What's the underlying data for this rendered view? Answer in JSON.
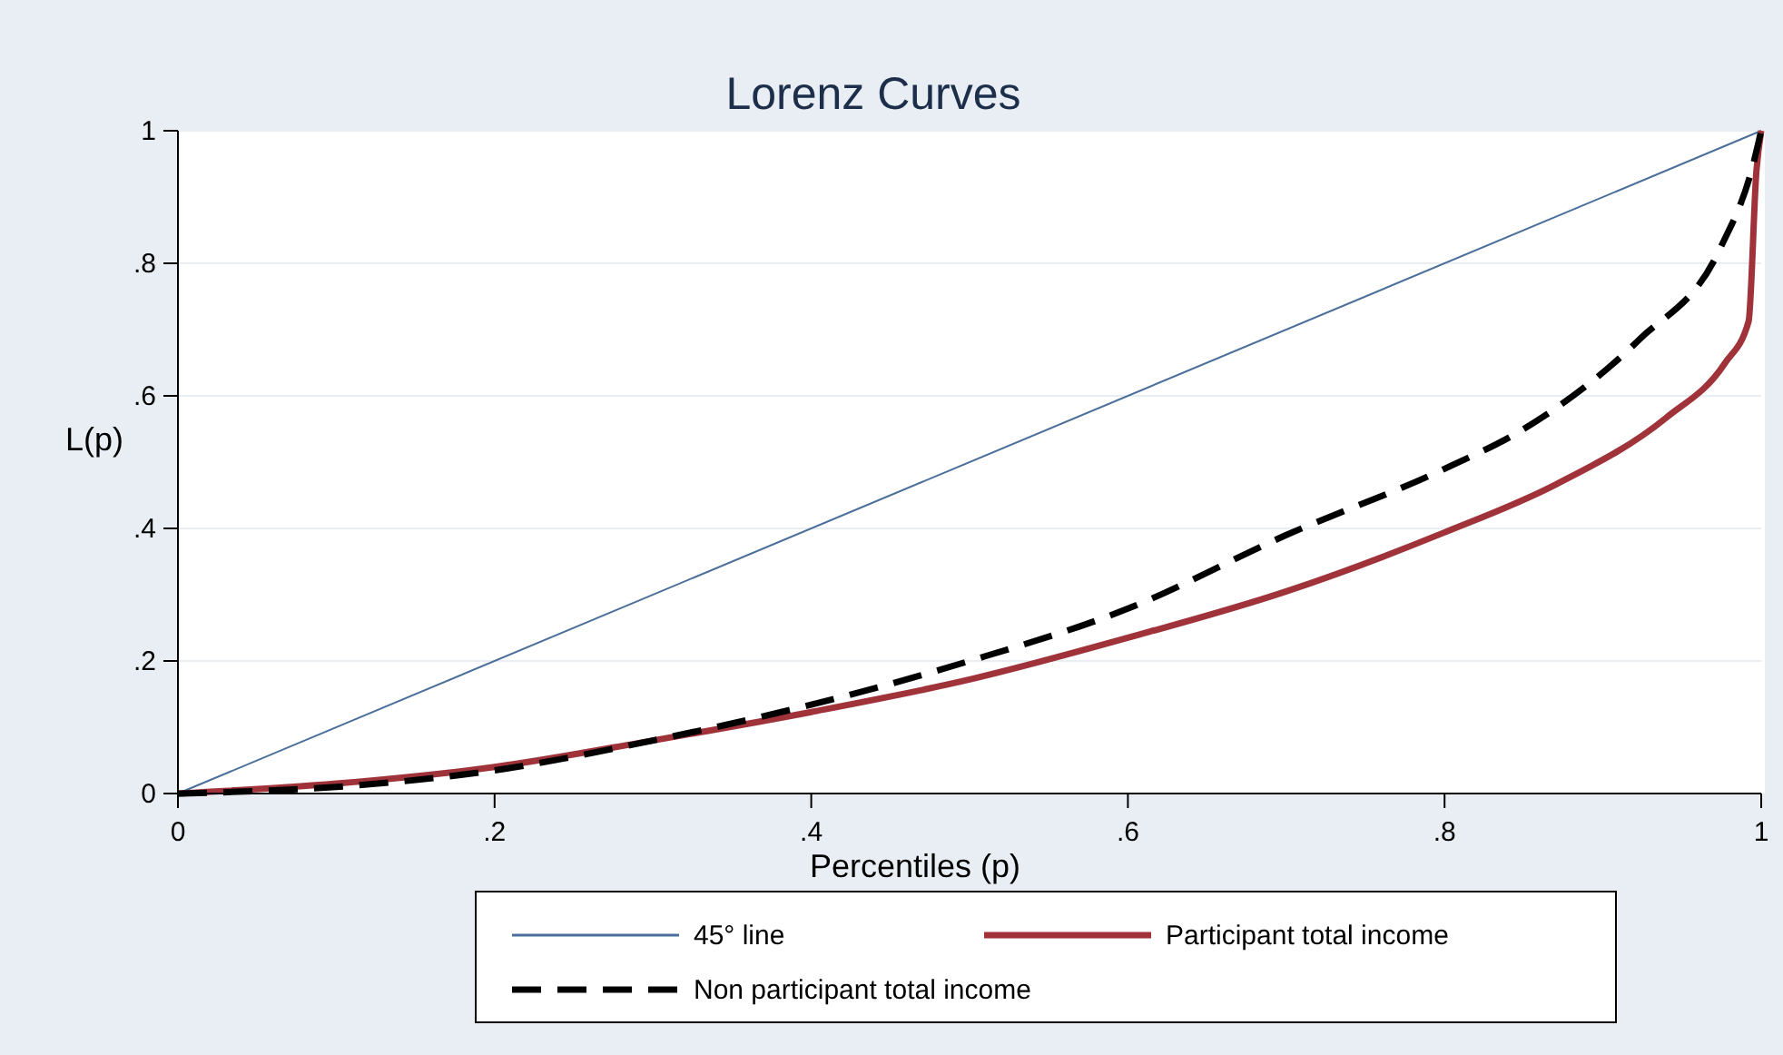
{
  "chart_data": {
    "type": "line",
    "title": "Lorenz Curves",
    "xlabel": "Percentiles (p)",
    "ylabel": "L(p)",
    "xlim": [
      0,
      1
    ],
    "ylim": [
      0,
      1
    ],
    "xticks": [
      0,
      {
        "value": 0.2,
        "label": ".2"
      },
      {
        "value": 0.4,
        "label": ".4"
      },
      {
        "value": 0.6,
        "label": ".6"
      },
      {
        "value": 0.8,
        "label": ".8"
      },
      1
    ],
    "yticks": [
      0,
      {
        "value": 0.2,
        "label": ".2"
      },
      {
        "value": 0.4,
        "label": ".4"
      },
      {
        "value": 0.6,
        "label": ".6"
      },
      {
        "value": 0.8,
        "label": ".8"
      },
      1
    ],
    "grid": "y",
    "legend": "bottom",
    "series": [
      {
        "name": "45° line",
        "color": "#4a6f9a",
        "line_style": "solid",
        "x": [
          0,
          1
        ],
        "values": [
          0,
          1
        ]
      },
      {
        "name": "Participant total income",
        "color": "#a0333a",
        "line_style": "solid",
        "x": [
          0,
          0.1,
          0.2,
          0.3,
          0.4,
          0.5,
          0.6,
          0.7,
          0.8,
          0.87,
          0.94,
          0.977,
          0.992,
          0.997,
          1
        ],
        "values": [
          0,
          0.015,
          0.04,
          0.08,
          0.123,
          0.172,
          0.235,
          0.305,
          0.394,
          0.466,
          0.567,
          0.649,
          0.712,
          0.94,
          1
        ]
      },
      {
        "name": "Non participant total income",
        "color": "#000000",
        "line_style": "dashed",
        "x": [
          0,
          0.1,
          0.2,
          0.3,
          0.4,
          0.5,
          0.6,
          0.7,
          0.8,
          0.85,
          0.923,
          0.974,
          0.995,
          1
        ],
        "values": [
          0,
          0.01,
          0.035,
          0.08,
          0.134,
          0.2,
          0.279,
          0.39,
          0.49,
          0.55,
          0.685,
          0.822,
          0.95,
          1
        ]
      }
    ]
  }
}
